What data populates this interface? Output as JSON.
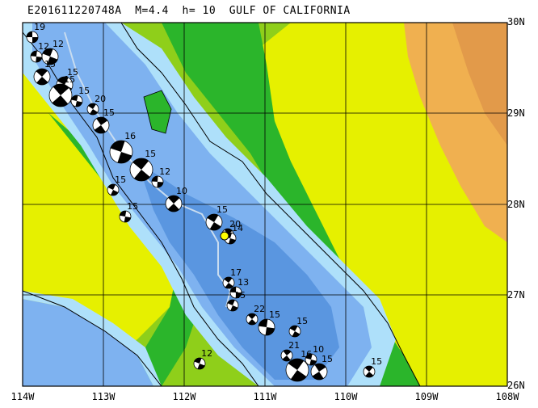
{
  "title": "E201611220748A  M=4.4  h= 10  GULF OF CALIFORNIA",
  "lat_labels": [
    "30N",
    "29N",
    "28N",
    "27N",
    "26N"
  ],
  "lon_labels": [
    "114W",
    "113W",
    "112W",
    "111W",
    "110W",
    "109W",
    "108W"
  ],
  "colors": {
    "deep_sea": "#5a96e0",
    "mid_sea": "#7eb2f0",
    "shallow_sea": "#aee0fa",
    "lowland": "#2bb52b",
    "low_hills": "#8fcf1a",
    "hills": "#e6f000",
    "uplands": "#f2e800",
    "highlands": "#f0b050",
    "mountains": "#e29a4a",
    "grid": "#000000",
    "trench_line": "#c8dcf0",
    "highlight": "#ffff00"
  },
  "events": [
    {
      "label": "19",
      "size": "small"
    },
    {
      "label": "12",
      "size": "medium"
    },
    {
      "label": "15",
      "size": "medium"
    },
    {
      "label": "12",
      "size": "small"
    },
    {
      "label": "15",
      "size": "medium"
    },
    {
      "label": "15",
      "size": "large"
    },
    {
      "label": "15",
      "size": "small"
    },
    {
      "label": "20",
      "size": "small"
    },
    {
      "label": "15",
      "size": "medium"
    },
    {
      "label": "16",
      "size": "large"
    },
    {
      "label": "15",
      "size": "large"
    },
    {
      "label": "12",
      "size": "small"
    },
    {
      "label": "15",
      "size": "small"
    },
    {
      "label": "10",
      "size": "medium"
    },
    {
      "label": "15",
      "size": "small"
    },
    {
      "label": "15",
      "size": "medium"
    },
    {
      "label": "20",
      "size": "small"
    },
    {
      "label": "14",
      "size": "small"
    },
    {
      "label": "17",
      "size": "small"
    },
    {
      "label": "13",
      "size": "small"
    },
    {
      "label": "15",
      "size": "small"
    },
    {
      "label": "22",
      "size": "small"
    },
    {
      "label": "15",
      "size": "medium"
    },
    {
      "label": "15",
      "size": "small"
    },
    {
      "label": "21",
      "size": "small"
    },
    {
      "label": "10",
      "size": "small"
    },
    {
      "label": "16",
      "size": "large"
    },
    {
      "label": "15",
      "size": "medium"
    },
    {
      "label": "12",
      "size": "small"
    },
    {
      "label": "15",
      "size": "small"
    }
  ]
}
